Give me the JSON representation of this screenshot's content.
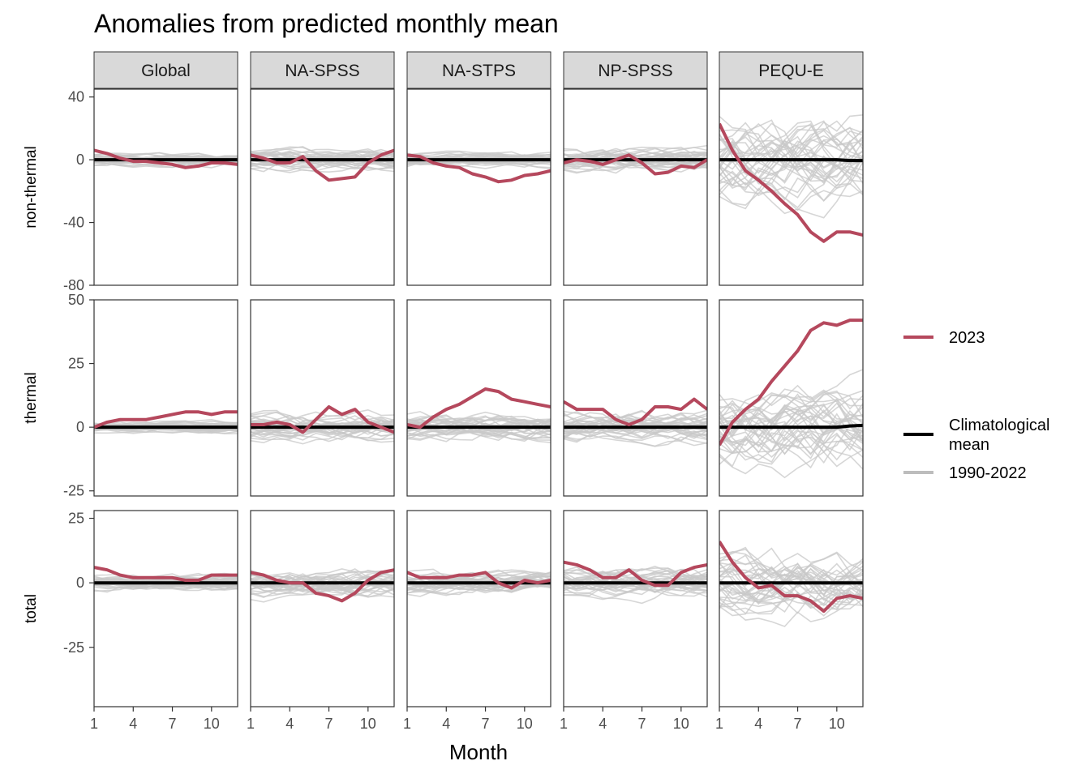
{
  "chart_data": {
    "type": "line",
    "title": "Anomalies from predicted monthly mean",
    "xlabel": "Month",
    "x_ticks": [
      1,
      4,
      7,
      10
    ],
    "months": [
      1,
      2,
      3,
      4,
      5,
      6,
      7,
      8,
      9,
      10,
      11,
      12
    ],
    "columns": [
      "Global",
      "NA-SPSS",
      "NA-STPS",
      "NP-SPSS",
      "PEQU-E"
    ],
    "rows": [
      {
        "key": "non-thermal",
        "label": "non-thermal",
        "ylim": [
          -80,
          45
        ],
        "yticks": [
          40,
          0,
          -40,
          -80
        ],
        "ytick_labels": [
          "40",
          "0",
          "-40",
          "-80"
        ]
      },
      {
        "key": "thermal",
        "label": "thermal",
        "ylim": [
          -27,
          50
        ],
        "yticks": [
          50,
          25,
          0,
          -25
        ],
        "ytick_labels": [
          "50",
          "25",
          "0",
          "-25"
        ]
      },
      {
        "key": "total",
        "label": "total",
        "ylim": [
          -48,
          28
        ],
        "yticks": [
          25,
          0,
          -25
        ],
        "ytick_labels": [
          "25",
          "0",
          "-25"
        ]
      }
    ],
    "series_2023": {
      "non-thermal": {
        "Global": [
          6,
          4,
          1,
          -1,
          -1,
          -2,
          -3,
          -5,
          -4,
          -2,
          -2,
          -3
        ],
        "NA-SPSS": [
          3,
          1,
          -2,
          -2,
          2,
          -7,
          -13,
          -12,
          -11,
          -2,
          3,
          6
        ],
        "NA-STPS": [
          3,
          2,
          -2,
          -4,
          -5,
          -9,
          -11,
          -14,
          -13,
          -10,
          -9,
          -7
        ],
        "NP-SPSS": [
          -2,
          0,
          -1,
          -3,
          0,
          3,
          -2,
          -9,
          -8,
          -4,
          -5,
          0
        ],
        "PEQU-E": [
          23,
          6,
          -7,
          -13,
          -20,
          -28,
          -35,
          -46,
          -52,
          -46,
          -46,
          -48
        ]
      },
      "thermal": {
        "Global": [
          0,
          2,
          3,
          3,
          3,
          4,
          5,
          6,
          6,
          5,
          6,
          6
        ],
        "NA-SPSS": [
          1,
          1,
          2,
          1,
          -2,
          3,
          8,
          5,
          7,
          2,
          0,
          -2
        ],
        "NA-STPS": [
          1,
          0,
          4,
          7,
          9,
          12,
          15,
          14,
          11,
          10,
          9,
          8
        ],
        "NP-SPSS": [
          10,
          7,
          7,
          7,
          3,
          1,
          3,
          8,
          8,
          7,
          11,
          7
        ],
        "PEQU-E": [
          -7,
          2,
          7,
          11,
          18,
          24,
          30,
          38,
          41,
          40,
          42,
          42
        ]
      },
      "total": {
        "Global": [
          6,
          5,
          3,
          2,
          2,
          2,
          2,
          1,
          1,
          3,
          3,
          3
        ],
        "NA-SPSS": [
          4,
          3,
          1,
          0,
          0,
          -4,
          -5,
          -7,
          -4,
          1,
          4,
          5
        ],
        "NA-STPS": [
          4,
          2,
          2,
          2,
          3,
          3,
          4,
          0,
          -2,
          1,
          0,
          1
        ],
        "NP-SPSS": [
          8,
          7,
          5,
          2,
          2,
          5,
          1,
          -1,
          -1,
          4,
          6,
          7
        ],
        "PEQU-E": [
          16,
          8,
          2,
          -2,
          -1,
          -5,
          -5,
          -7,
          -11,
          -6,
          -5,
          -6
        ]
      }
    },
    "climatological_mean": {
      "non-thermal": [
        0,
        0,
        0,
        0,
        0,
        0,
        0,
        0,
        0,
        0,
        0,
        0
      ],
      "thermal": [
        0,
        0,
        0,
        0,
        0,
        0,
        0,
        0,
        0,
        0,
        0,
        0
      ],
      "total": [
        0,
        0,
        0,
        0,
        0,
        0,
        0,
        0,
        0,
        0,
        0,
        0
      ],
      "PEQU-E": {
        "non-thermal": [
          0,
          0,
          0,
          0,
          0,
          0,
          0,
          0,
          0,
          0,
          -0.5,
          -0.5
        ],
        "thermal": [
          0,
          0,
          0,
          0,
          0,
          0,
          0,
          0,
          0,
          0,
          0.5,
          0.7
        ]
      }
    },
    "background_years": "1990-2022",
    "background_spread": {
      "non-thermal": {
        "Global": 5,
        "NA-SPSS": 9,
        "NA-STPS": 6,
        "NP-SPSS": 10,
        "PEQU-E": 38
      },
      "thermal": {
        "Global": 3,
        "NA-SPSS": 7,
        "NA-STPS": 7,
        "NP-SPSS": 8,
        "PEQU-E": 22
      },
      "total": {
        "Global": 4,
        "NA-SPSS": 8,
        "NA-STPS": 6,
        "NP-SPSS": 8,
        "PEQU-E": 18
      }
    },
    "legend": {
      "position": "right",
      "items": [
        {
          "label": "2023",
          "color": "#b5485d"
        },
        {
          "label": "Climatological mean",
          "line1": "Climatological",
          "line2": "mean",
          "color": "#000000"
        },
        {
          "label": "1990-2022",
          "color": "#bdbdbd"
        }
      ]
    },
    "colors": {
      "highlight": "#b5485d",
      "mean": "#000000",
      "background": "#c8c8c8",
      "strip": "#d9d9d9"
    }
  }
}
